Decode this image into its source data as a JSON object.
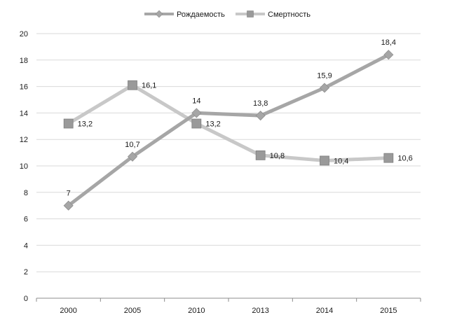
{
  "chart_data": {
    "type": "line",
    "categories": [
      "2000",
      "2005",
      "2010",
      "2013",
      "2014",
      "2015"
    ],
    "series": [
      {
        "name": "Рождаемость",
        "values": [
          7,
          10.7,
          14,
          13.8,
          15.9,
          18.4
        ],
        "labels": [
          "7",
          "10,7",
          "14",
          "13,8",
          "15,9",
          "18,4"
        ],
        "marker": "diamond",
        "color": "#a6a6a6"
      },
      {
        "name": "Смертность",
        "values": [
          13.2,
          16.1,
          13.2,
          10.8,
          10.4,
          10.6
        ],
        "labels": [
          "13,2",
          "16,1",
          "13,2",
          "10,8",
          "10,4",
          "10,6"
        ],
        "marker": "square",
        "color": "#c8c8c8"
      }
    ],
    "ylim": [
      0,
      20
    ],
    "yticks": [
      "0",
      "2",
      "4",
      "6",
      "8",
      "10",
      "12",
      "14",
      "16",
      "18",
      "20"
    ],
    "grid": "horizontal",
    "legend": "top-center"
  }
}
